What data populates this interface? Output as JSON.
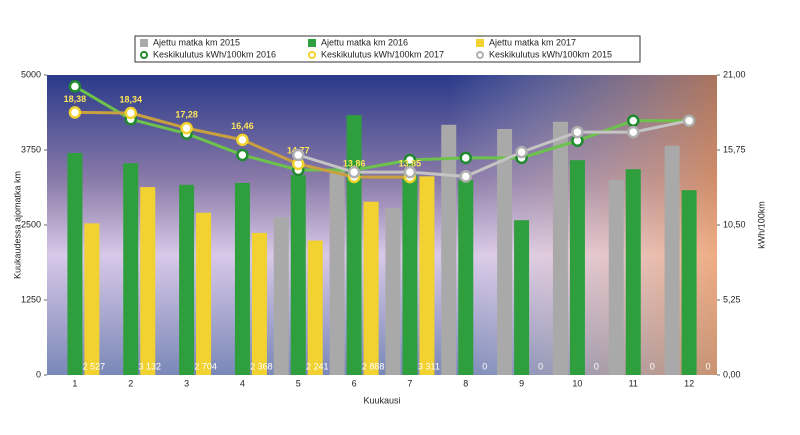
{
  "chart_data": {
    "type": "bar",
    "x_label": "Kuukausi",
    "y_label": "Kuukaudessa ajomatka km",
    "y2_label": "kWh/100km",
    "categories": [
      "1",
      "2",
      "3",
      "4",
      "5",
      "6",
      "7",
      "8",
      "9",
      "10",
      "11",
      "12"
    ],
    "ylim": [
      0,
      5000
    ],
    "yticks": [
      0,
      1250,
      2500,
      3750,
      5000
    ],
    "y2lim": [
      0,
      21
    ],
    "y2ticks": [
      {
        "value": 0,
        "label": "0,00"
      },
      {
        "value": 5.25,
        "label": "5,25"
      },
      {
        "value": 10.5,
        "label": "10,50"
      },
      {
        "value": 15.75,
        "label": "15,75"
      },
      {
        "value": 21,
        "label": "21,00"
      }
    ],
    "series": [
      {
        "name": "Ajettu matka km 2015",
        "type": "bar",
        "color": "#a9a9a9",
        "values": [
          0,
          0,
          0,
          0,
          2630,
          3400,
          2780,
          4170,
          4100,
          4220,
          3250,
          3820
        ]
      },
      {
        "name": "Ajettu matka km 2016",
        "type": "bar",
        "color": "#2f9e3c",
        "values": [
          3700,
          3530,
          3170,
          3200,
          3330,
          4330,
          3330,
          3250,
          2580,
          3580,
          3430,
          3080
        ]
      },
      {
        "name": "Ajettu matka km 2017",
        "type": "bar",
        "color": "#f2d230",
        "values": [
          2527,
          3132,
          2704,
          2368,
          2241,
          2888,
          3311,
          0,
          0,
          0,
          0,
          0
        ],
        "value_labels": [
          "2 527",
          "3 132",
          "2 704",
          "2 368",
          "2 241",
          "2 888",
          "3 311",
          "0",
          "0",
          "0",
          "0",
          "0"
        ]
      },
      {
        "name": "Keskikulutus kWh/100km 2016",
        "type": "line",
        "axis": "y2",
        "color": "#6cc24a",
        "marker": "#1f8a2e",
        "values": [
          20.2,
          17.9,
          16.9,
          15.4,
          14.35,
          14.35,
          15.05,
          15.2,
          15.2,
          16.4,
          17.8,
          17.8
        ]
      },
      {
        "name": "Keskikulutus kWh/100km 2017",
        "type": "line",
        "axis": "y2",
        "color": "#c9a040",
        "marker": "#f2d230",
        "values": [
          18.38,
          18.34,
          17.28,
          16.46,
          14.77,
          13.86,
          13.85,
          null,
          null,
          null,
          null,
          null
        ],
        "value_labels": [
          "18,38",
          "18,34",
          "17,28",
          "16,46",
          "14,77",
          "13,86",
          "13,85",
          null,
          null,
          null,
          null,
          null
        ]
      },
      {
        "name": "Keskikulutus kWh/100km 2015",
        "type": "line",
        "axis": "y2",
        "color": "#c4c4c4",
        "marker": "#b0b0b0",
        "values": [
          null,
          null,
          null,
          null,
          15.4,
          14.2,
          14.2,
          13.9,
          15.6,
          17.0,
          17.0,
          17.8
        ]
      }
    ]
  }
}
